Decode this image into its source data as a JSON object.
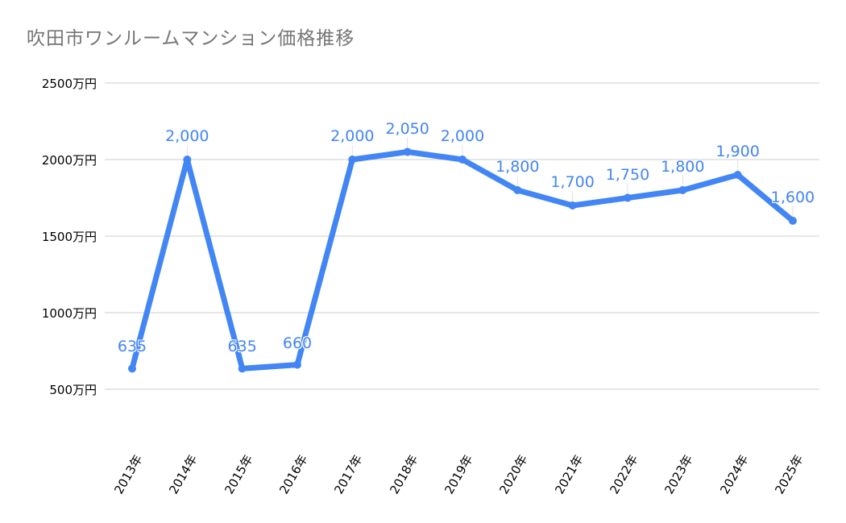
{
  "chart_data": {
    "type": "line",
    "title": "吹田市ワンルームマンション価格推移",
    "xlabel": "",
    "ylabel": "",
    "categories": [
      "2013年",
      "2014年",
      "2015年",
      "2016年",
      "2017年",
      "2018年",
      "2019年",
      "2020年",
      "2021年",
      "2022年",
      "2023年",
      "2024年",
      "2025年"
    ],
    "series": [
      {
        "name": "価格",
        "values": [
          635,
          2000,
          635,
          660,
          2000,
          2050,
          2000,
          1800,
          1700,
          1750,
          1800,
          1900,
          1600
        ],
        "data_labels": [
          "635",
          "2,000",
          "635",
          "660",
          "2,000",
          "2,050",
          "2,000",
          "1,800",
          "1,700",
          "1,750",
          "1,800",
          "1,900",
          "1,600"
        ],
        "color": "#4285f4"
      }
    ],
    "yticks": [
      "2500万円",
      "2000万円",
      "1500万円",
      "1000万円",
      "500万円"
    ],
    "ytick_values": [
      2500,
      2000,
      1500,
      1000,
      500
    ],
    "ylim": [
      300,
      2500
    ],
    "grid": true,
    "legend": "none"
  },
  "colors": {
    "line": "#4285f4",
    "grid": "#cccccc",
    "title": "#757575"
  }
}
